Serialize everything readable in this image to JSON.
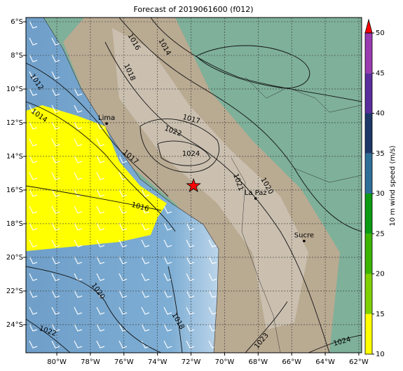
{
  "chart_data": {
    "type": "map",
    "title": "Forecast of 2019061600 (f012)",
    "xlim": [
      -81.84,
      -61.83
    ],
    "ylim": [
      -25.67,
      -5.75
    ],
    "xticks": [
      {
        "value": -80,
        "label": "80°W"
      },
      {
        "value": -78,
        "label": "78°W"
      },
      {
        "value": -76,
        "label": "76°W"
      },
      {
        "value": -74,
        "label": "74°W"
      },
      {
        "value": -72,
        "label": "72°W"
      },
      {
        "value": -70,
        "label": "70°W"
      },
      {
        "value": -68,
        "label": "68°W"
      },
      {
        "value": -66,
        "label": "66°W"
      },
      {
        "value": -64,
        "label": "64°W"
      },
      {
        "value": -62,
        "label": "62°W"
      }
    ],
    "yticks": [
      {
        "value": -6,
        "label": "6°S"
      },
      {
        "value": -8,
        "label": "8°S"
      },
      {
        "value": -10,
        "label": "10°S"
      },
      {
        "value": -12,
        "label": "12°S"
      },
      {
        "value": -14,
        "label": "14°S"
      },
      {
        "value": -16,
        "label": "16°S"
      },
      {
        "value": -18,
        "label": "18°S"
      },
      {
        "value": -20,
        "label": "20°S"
      },
      {
        "value": -22,
        "label": "22°S"
      },
      {
        "value": -24,
        "label": "24°S"
      }
    ],
    "grid": true,
    "cities": [
      {
        "name": "Lima",
        "lon": -77.03,
        "lat": -12.05
      },
      {
        "name": "La Paz",
        "lon": -68.15,
        "lat": -16.5
      },
      {
        "name": "Sucre",
        "lon": -65.26,
        "lat": -19.03
      }
    ],
    "marker": {
      "lon": -71.85,
      "lat": -15.75,
      "color": "#ff0000"
    },
    "contour_labels": [
      {
        "value": 1016,
        "lon": -75.4,
        "lat": -7.2
      },
      {
        "value": 1014,
        "lon": -73.57,
        "lat": -7.5
      },
      {
        "value": 1018,
        "lon": -75.66,
        "lat": -9.0
      },
      {
        "value": 1012,
        "lon": -81.2,
        "lat": -9.58
      },
      {
        "value": 1014,
        "lon": -81.05,
        "lat": -11.58
      },
      {
        "value": 1017,
        "lon": -71.98,
        "lat": -11.79
      },
      {
        "value": 1022,
        "lon": -73.07,
        "lat": -12.5
      },
      {
        "value": 1024,
        "lon": -72.0,
        "lat": -13.83
      },
      {
        "value": 1017,
        "lon": -75.6,
        "lat": -14.04
      },
      {
        "value": 1016,
        "lon": -75.03,
        "lat": -17.0
      },
      {
        "value": 1021,
        "lon": -69.18,
        "lat": -15.54
      },
      {
        "value": 1020,
        "lon": -67.47,
        "lat": -15.75
      },
      {
        "value": 1020,
        "lon": -77.54,
        "lat": -22.0
      },
      {
        "value": 1018,
        "lon": -72.77,
        "lat": -23.79
      },
      {
        "value": 1022,
        "lon": -80.54,
        "lat": -24.38
      },
      {
        "value": 1023,
        "lon": -67.8,
        "lat": -24.96
      },
      {
        "value": 1024,
        "lon": -63.0,
        "lat": -25.0
      }
    ],
    "colorbar": {
      "label": "10 m wind speed (m/s)",
      "lim": [
        10,
        50
      ],
      "ticks": [
        10,
        15,
        20,
        25,
        30,
        35,
        40,
        45,
        50
      ],
      "colors": [
        "#ffff00",
        "#80d000",
        "#3cb400",
        "#0b9a14",
        "#2e6f98",
        "#1d3768",
        "#5b2d9c",
        "#9a3cb0"
      ],
      "extend_color": "#ff0000"
    }
  }
}
